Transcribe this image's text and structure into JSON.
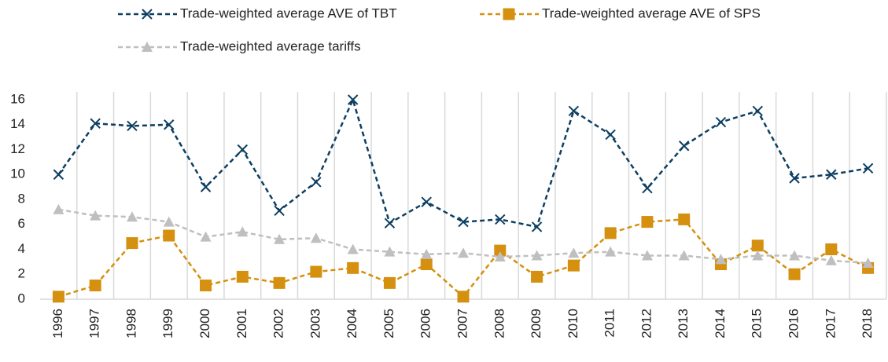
{
  "chart_data": {
    "type": "line",
    "categories": [
      "1996",
      "1997",
      "1998",
      "1999",
      "2000",
      "2001",
      "2002",
      "2003",
      "2004",
      "2005",
      "2006",
      "2007",
      "2008",
      "2009",
      "2010",
      "2011",
      "2012",
      "2013",
      "2014",
      "2015",
      "2016",
      "2017",
      "2018"
    ],
    "series": [
      {
        "name": "Trade-weighted average AVE of TBT",
        "color": "#0d3f61",
        "marker": "x",
        "values": [
          10.0,
          14.1,
          13.9,
          14.0,
          9.0,
          12.0,
          7.1,
          9.4,
          16.0,
          6.1,
          7.8,
          6.2,
          6.4,
          5.8,
          15.1,
          13.2,
          8.9,
          12.3,
          14.2,
          15.1,
          9.7,
          10.0,
          10.5
        ]
      },
      {
        "name": "Trade-weighted average AVE of SPS",
        "color": "#d4900e",
        "marker": "square",
        "values": [
          0.2,
          1.1,
          4.5,
          5.1,
          1.1,
          1.8,
          1.3,
          2.2,
          2.5,
          1.3,
          2.8,
          0.2,
          3.9,
          1.8,
          2.7,
          5.3,
          6.2,
          6.4,
          2.8,
          4.3,
          2.0,
          4.0,
          2.5
        ]
      },
      {
        "name": "Trade-weighted average tariffs",
        "color": "#bfbfbf",
        "marker": "triangle",
        "values": [
          7.2,
          6.7,
          6.6,
          6.2,
          5.0,
          5.4,
          4.8,
          4.9,
          4.0,
          3.8,
          3.6,
          3.7,
          3.4,
          3.5,
          3.7,
          3.8,
          3.5,
          3.5,
          3.2,
          3.5,
          3.5,
          3.1,
          2.9
        ]
      }
    ],
    "ylim": [
      0,
      16
    ],
    "yticks": [
      0,
      2,
      4,
      6,
      8,
      10,
      12,
      14,
      16
    ],
    "vertical_grid": true,
    "line_style": "dashed",
    "legend": "top"
  }
}
